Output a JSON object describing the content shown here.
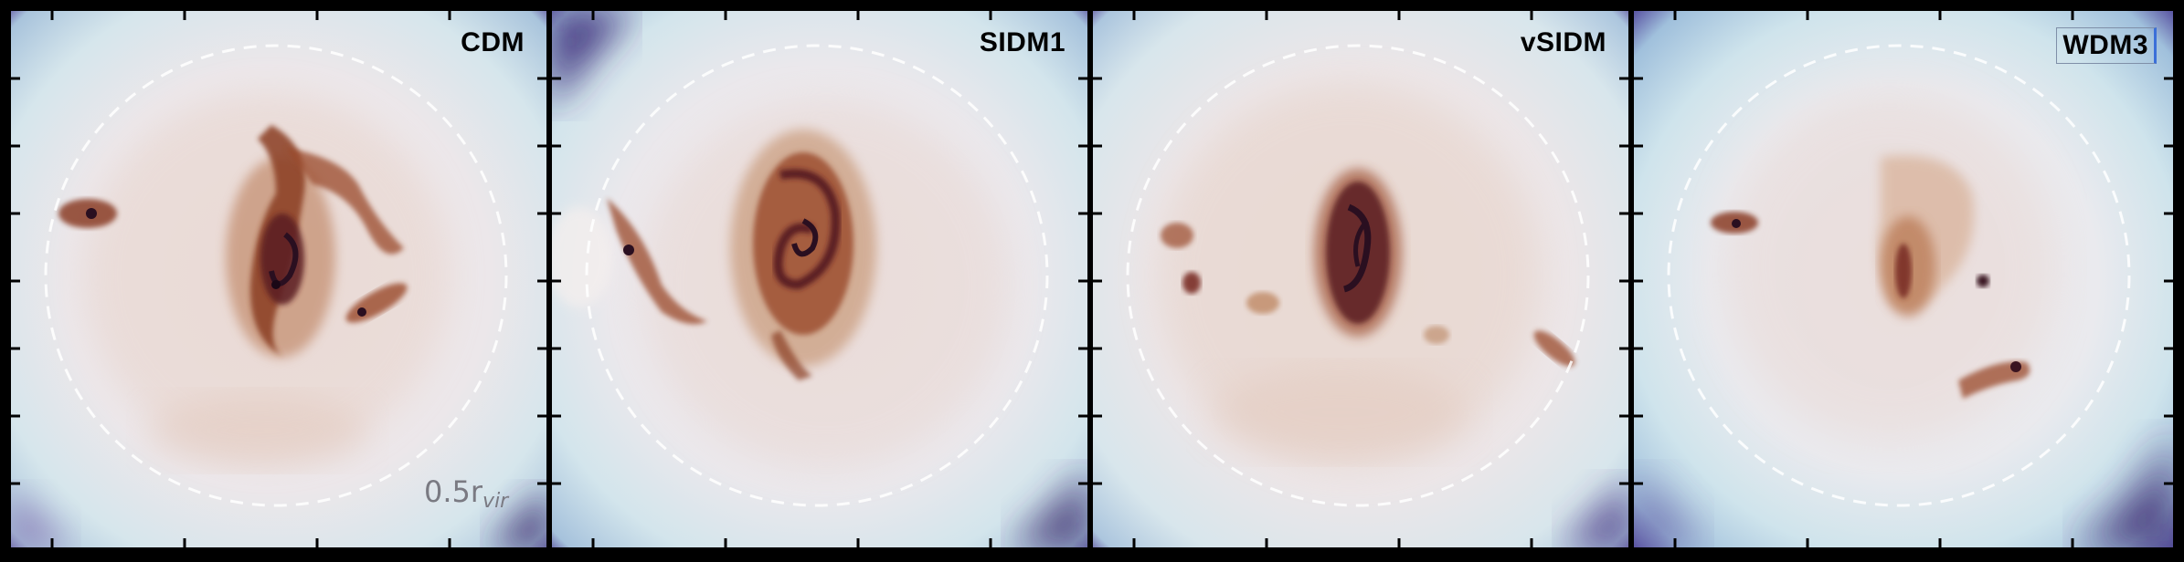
{
  "figure": {
    "panels": [
      {
        "id": "cdm",
        "label": "CDM"
      },
      {
        "id": "sidm1",
        "label": "SIDM1"
      },
      {
        "id": "vsidm",
        "label": "vSIDM"
      },
      {
        "id": "wdm3",
        "label": "WDM3"
      }
    ],
    "scale_marker": {
      "base": "0.5r",
      "subscript": "vir"
    }
  },
  "colors": {
    "frame": "#000000",
    "halo_light": "#efe6e6",
    "halo_edge_blue": "#b9d6e0",
    "halo_deep_purple": "#3c2a70",
    "galaxy_brown": "#a0502a",
    "galaxy_dark": "#2a1020",
    "virial_circle": "#ffffff"
  }
}
